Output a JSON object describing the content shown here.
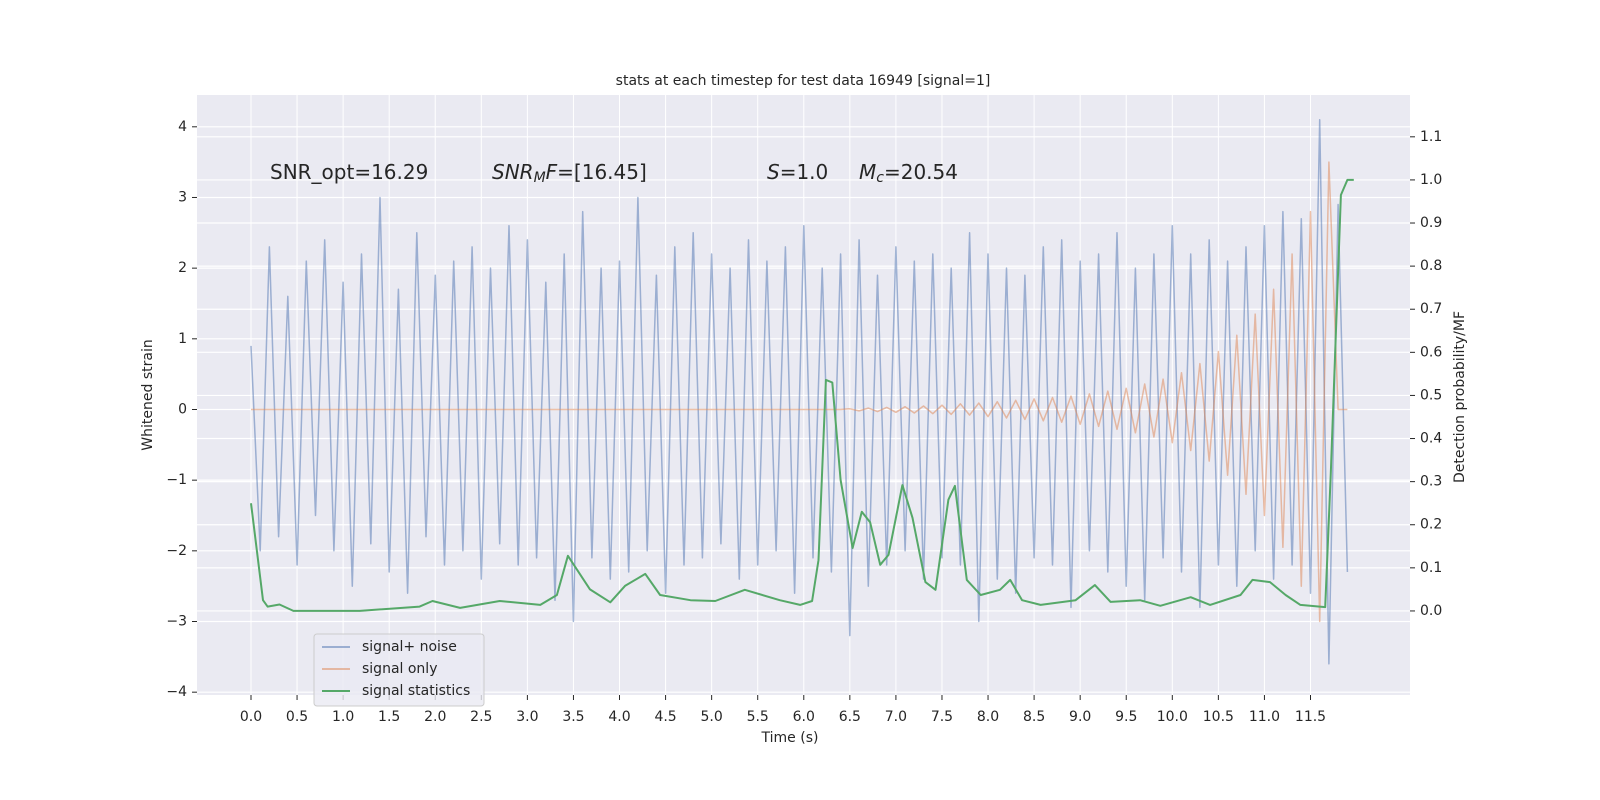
{
  "chart_data": {
    "type": "line",
    "title": "stats at each timestep for test data 16949 [signal=1]",
    "x_label": "Time (s)",
    "y_label": "Whitened strain",
    "y2_label": "Detection probability/MF",
    "grid": true,
    "background": "#eaeaf2",
    "legend_position": "lower left",
    "xlim": [
      -0.586,
      12.58
    ],
    "ylim": [
      -4.04,
      4.45
    ],
    "y2lim": [
      -0.195,
      1.197
    ],
    "xticks": [
      {
        "value": 0,
        "label": "0.0"
      },
      0.5,
      {
        "value": 1,
        "label": "1.0"
      },
      1.5,
      {
        "value": 2,
        "label": "2.0"
      },
      2.5,
      {
        "value": 3,
        "label": "3.0"
      },
      3.5,
      {
        "value": 4,
        "label": "4.0"
      },
      4.5,
      {
        "value": 5,
        "label": "5.0"
      },
      5.5,
      {
        "value": 6,
        "label": "6.0"
      },
      6.5,
      {
        "value": 7,
        "label": "7.0"
      },
      7.5,
      {
        "value": 8,
        "label": "8.0"
      },
      8.5,
      {
        "value": 9,
        "label": "9.0"
      },
      9.5,
      {
        "value": 10,
        "label": "10.0"
      },
      10.5,
      {
        "value": 11,
        "label": "11.0"
      },
      11.5
    ],
    "yticks": [
      {
        "value": -4,
        "label": "−4"
      },
      {
        "value": -3,
        "label": "−3"
      },
      {
        "value": -2,
        "label": "−2"
      },
      {
        "value": -1,
        "label": "−1"
      },
      0,
      1,
      2,
      3,
      4
    ],
    "y2ticks": [
      {
        "value": 0,
        "label": "0.0"
      },
      0.1,
      0.2,
      0.3,
      0.4,
      0.5,
      0.6,
      0.7,
      0.8,
      0.9,
      {
        "value": 1,
        "label": "1.0"
      },
      1.1
    ],
    "annotations": [
      {
        "segments": [
          {
            "text": "SNR_opt=16.29"
          }
        ]
      },
      {
        "segments": [
          {
            "text": "SNR",
            "style": "italic"
          },
          {
            "text": "M",
            "style": "italic-sub"
          },
          {
            "text": "F",
            "style": "italic"
          },
          {
            "text": "=[16.45]"
          }
        ]
      },
      {
        "segments": [
          {
            "text": "S",
            "style": "italic"
          },
          {
            "text": "=1.0"
          }
        ]
      },
      {
        "segments": [
          {
            "text": "M",
            "style": "italic"
          },
          {
            "text": "c",
            "style": "italic-sub"
          },
          {
            "text": "=20.54"
          }
        ]
      }
    ],
    "x": [
      0,
      0.1,
      0.2,
      0.3,
      0.4,
      0.5,
      0.6,
      0.7,
      0.8,
      0.9,
      1,
      1.1,
      1.2,
      1.3,
      1.4,
      1.5,
      1.6,
      1.7,
      1.8,
      1.9,
      2,
      2.1,
      2.2,
      2.3,
      2.4,
      2.5,
      2.6,
      2.7,
      2.8,
      2.9,
      3,
      3.1,
      3.2,
      3.3,
      3.4,
      3.5,
      3.6,
      3.7,
      3.8,
      3.9,
      4,
      4.1,
      4.2,
      4.3,
      4.4,
      4.5,
      4.6,
      4.7,
      4.8,
      4.9,
      5,
      5.1,
      5.2,
      5.3,
      5.4,
      5.5,
      5.6,
      5.7,
      5.8,
      5.9,
      6,
      6.1,
      6.2,
      6.3,
      6.4,
      6.5,
      6.6,
      6.7,
      6.8,
      6.9,
      7,
      7.1,
      7.2,
      7.3,
      7.4,
      7.5,
      7.6,
      7.7,
      7.8,
      7.9,
      8,
      8.1,
      8.2,
      8.3,
      8.4,
      8.5,
      8.6,
      8.7,
      8.8,
      8.9,
      9,
      9.1,
      9.2,
      9.3,
      9.4,
      9.5,
      9.6,
      9.7,
      9.8,
      9.9,
      10,
      10.1,
      10.2,
      10.3,
      10.4,
      10.5,
      10.6,
      10.7,
      10.8,
      10.9,
      11,
      11.1,
      11.2,
      11.3,
      11.4,
      11.5,
      11.6,
      11.7,
      11.8,
      11.9
    ],
    "series": [
      {
        "name": "signal+ noise",
        "color": "#4c72b0",
        "opacity": 0.5,
        "values": [
          0.9,
          -2.0,
          2.3,
          -1.8,
          1.6,
          -2.2,
          2.1,
          -1.5,
          2.4,
          -2.0,
          1.8,
          -2.5,
          2.2,
          -1.9,
          3.0,
          -2.3,
          1.7,
          -2.6,
          2.5,
          -1.8,
          1.9,
          -2.2,
          2.1,
          -2.0,
          2.3,
          -2.4,
          2.0,
          -1.9,
          2.6,
          -2.2,
          2.4,
          -2.1,
          1.8,
          -2.7,
          2.2,
          -3.0,
          2.8,
          -2.1,
          2.0,
          -2.4,
          2.1,
          -2.3,
          3.0,
          -2.0,
          1.9,
          -2.6,
          2.3,
          -2.2,
          2.5,
          -2.1,
          2.2,
          -1.9,
          2.0,
          -2.4,
          2.4,
          -2.2,
          2.1,
          -2.0,
          2.3,
          -2.6,
          2.6,
          -2.1,
          2.0,
          -2.3,
          2.2,
          -3.2,
          2.4,
          -2.5,
          1.9,
          -2.2,
          2.3,
          -2.0,
          2.1,
          -2.4,
          2.2,
          -2.1,
          2.0,
          -2.2,
          2.5,
          -3.0,
          2.2,
          -2.4,
          2.0,
          -2.6,
          1.9,
          -2.1,
          2.3,
          -2.2,
          2.4,
          -2.8,
          2.1,
          -2.0,
          2.2,
          -2.3,
          2.5,
          -2.5,
          2.0,
          -2.7,
          2.2,
          -2.1,
          2.6,
          -2.3,
          2.2,
          -2.8,
          2.4,
          -2.2,
          2.1,
          -2.5,
          2.3,
          -2.0,
          2.6,
          -2.4,
          2.8,
          -2.2,
          2.7,
          -2.6,
          4.1,
          -3.6,
          2.9,
          -2.3
        ]
      },
      {
        "name": "signal only",
        "color": "#dd8452",
        "opacity": 0.5,
        "values": [
          0,
          0,
          0,
          0,
          0,
          0,
          0,
          0,
          0,
          0,
          0,
          0,
          0,
          0,
          0,
          0,
          0,
          0,
          0,
          0,
          0,
          0,
          0,
          0,
          0,
          0,
          0,
          0,
          0,
          0,
          0,
          0,
          0,
          0,
          0,
          0,
          0,
          0,
          0,
          0,
          0,
          0,
          0,
          0,
          0,
          0,
          0,
          0,
          0,
          0,
          0,
          0,
          0,
          0,
          0,
          0,
          0,
          0,
          0,
          0,
          0,
          0,
          0,
          0,
          0,
          0.01,
          -0.02,
          0.02,
          -0.03,
          0.03,
          -0.04,
          0.04,
          -0.05,
          0.05,
          -0.06,
          0.06,
          -0.07,
          0.08,
          -0.08,
          0.09,
          -0.1,
          0.11,
          -0.12,
          0.13,
          -0.14,
          0.15,
          -0.16,
          0.17,
          -0.18,
          0.19,
          -0.21,
          0.22,
          -0.24,
          0.26,
          -0.28,
          0.3,
          -0.33,
          0.36,
          -0.39,
          0.43,
          -0.47,
          0.52,
          -0.58,
          0.65,
          -0.73,
          0.82,
          -0.93,
          1.05,
          -1.2,
          1.35,
          -1.5,
          1.7,
          -1.95,
          2.2,
          -2.5,
          2.8,
          -3.0,
          3.5,
          0,
          0
        ]
      },
      {
        "name": "signal statistics",
        "color": "#55a868",
        "axis": "y2",
        "x": [
          0,
          0.13,
          0.18,
          0.31,
          0.46,
          1.18,
          1.83,
          1.97,
          2.27,
          2.7,
          3.14,
          3.32,
          3.44,
          3.68,
          3.9,
          4.06,
          4.28,
          4.44,
          4.77,
          5.04,
          5.36,
          5.74,
          5.96,
          6.09,
          6.16,
          6.24,
          6.31,
          6.4,
          6.53,
          6.63,
          6.72,
          6.83,
          6.92,
          7.07,
          7.18,
          7.32,
          7.43,
          7.57,
          7.64,
          7.77,
          7.92,
          8.13,
          8.24,
          8.37,
          8.57,
          8.95,
          9.16,
          9.33,
          9.65,
          9.87,
          10.2,
          10.41,
          10.74,
          10.87,
          11.06,
          11.23,
          11.39,
          11.66,
          11.72,
          11.83,
          11.9,
          11.97
        ],
        "values": [
          0.25,
          0.025,
          0.01,
          0.015,
          0,
          0,
          0.01,
          0.023,
          0.007,
          0.023,
          0.014,
          0.037,
          0.128,
          0.05,
          0.02,
          0.058,
          0.086,
          0.037,
          0.025,
          0.023,
          0.049,
          0.025,
          0.014,
          0.023,
          0.118,
          0.536,
          0.53,
          0.304,
          0.146,
          0.23,
          0.206,
          0.107,
          0.13,
          0.292,
          0.216,
          0.067,
          0.049,
          0.258,
          0.29,
          0.072,
          0.037,
          0.049,
          0.072,
          0.025,
          0.014,
          0.025,
          0.06,
          0.021,
          0.025,
          0.012,
          0.032,
          0.014,
          0.037,
          0.072,
          0.067,
          0.037,
          0.014,
          0.009,
          0.32,
          0.965,
          1,
          1
        ]
      }
    ]
  }
}
